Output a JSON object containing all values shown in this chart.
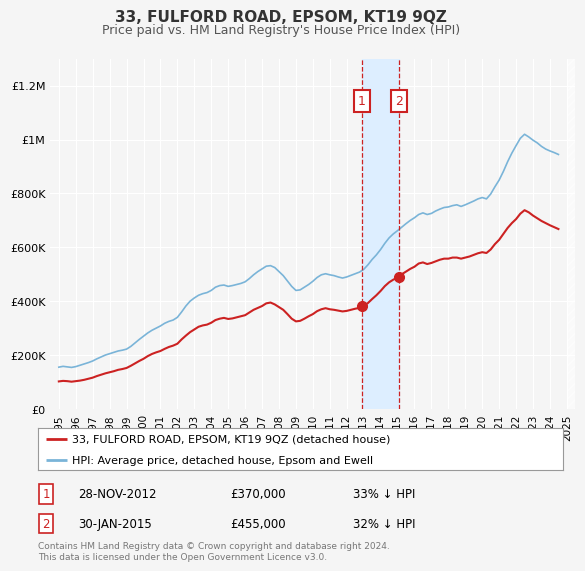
{
  "title": "33, FULFORD ROAD, EPSOM, KT19 9QZ",
  "subtitle": "Price paid vs. HM Land Registry's House Price Index (HPI)",
  "ylim": [
    0,
    1300000
  ],
  "yticks": [
    0,
    200000,
    400000,
    600000,
    800000,
    1000000,
    1200000
  ],
  "ytick_labels": [
    "£0",
    "£200K",
    "£400K",
    "£600K",
    "£800K",
    "£1M",
    "£1.2M"
  ],
  "background_color": "#f5f5f5",
  "plot_bg_color": "#f5f5f5",
  "grid_color": "#ffffff",
  "hpi_color": "#7ab4d8",
  "price_color": "#cc2222",
  "annotation_box_color": "#cc2222",
  "shade_color": "#ddeeff",
  "legend_label_price": "33, FULFORD ROAD, EPSOM, KT19 9QZ (detached house)",
  "legend_label_hpi": "HPI: Average price, detached house, Epsom and Ewell",
  "footer": "Contains HM Land Registry data © Crown copyright and database right 2024.\nThis data is licensed under the Open Government Licence v3.0.",
  "purchase1_date": "28-NOV-2012",
  "purchase1_price": 370000,
  "purchase1_label": "33",
  "purchase1_x": 2012.9,
  "purchase2_date": "30-JAN-2015",
  "purchase2_price": 455000,
  "purchase2_label": "32",
  "purchase2_x": 2015.08,
  "hpi_data": [
    [
      1995.0,
      155000
    ],
    [
      1995.25,
      158000
    ],
    [
      1995.5,
      156000
    ],
    [
      1995.75,
      154000
    ],
    [
      1996.0,
      157000
    ],
    [
      1996.25,
      162000
    ],
    [
      1996.5,
      167000
    ],
    [
      1996.75,
      172000
    ],
    [
      1997.0,
      178000
    ],
    [
      1997.25,
      186000
    ],
    [
      1997.5,
      193000
    ],
    [
      1997.75,
      200000
    ],
    [
      1998.0,
      205000
    ],
    [
      1998.25,
      210000
    ],
    [
      1998.5,
      215000
    ],
    [
      1998.75,
      218000
    ],
    [
      1999.0,
      222000
    ],
    [
      1999.25,
      232000
    ],
    [
      1999.5,
      245000
    ],
    [
      1999.75,
      258000
    ],
    [
      2000.0,
      270000
    ],
    [
      2000.25,
      282000
    ],
    [
      2000.5,
      292000
    ],
    [
      2000.75,
      300000
    ],
    [
      2001.0,
      308000
    ],
    [
      2001.25,
      318000
    ],
    [
      2001.5,
      325000
    ],
    [
      2001.75,
      330000
    ],
    [
      2002.0,
      340000
    ],
    [
      2002.25,
      360000
    ],
    [
      2002.5,
      382000
    ],
    [
      2002.75,
      400000
    ],
    [
      2003.0,
      412000
    ],
    [
      2003.25,
      422000
    ],
    [
      2003.5,
      428000
    ],
    [
      2003.75,
      432000
    ],
    [
      2004.0,
      440000
    ],
    [
      2004.25,
      452000
    ],
    [
      2004.5,
      458000
    ],
    [
      2004.75,
      460000
    ],
    [
      2005.0,
      455000
    ],
    [
      2005.25,
      458000
    ],
    [
      2005.5,
      462000
    ],
    [
      2005.75,
      466000
    ],
    [
      2006.0,
      472000
    ],
    [
      2006.25,
      484000
    ],
    [
      2006.5,
      498000
    ],
    [
      2006.75,
      510000
    ],
    [
      2007.0,
      520000
    ],
    [
      2007.25,
      530000
    ],
    [
      2007.5,
      532000
    ],
    [
      2007.75,
      525000
    ],
    [
      2008.0,
      510000
    ],
    [
      2008.25,
      495000
    ],
    [
      2008.5,
      475000
    ],
    [
      2008.75,
      455000
    ],
    [
      2009.0,
      440000
    ],
    [
      2009.25,
      442000
    ],
    [
      2009.5,
      452000
    ],
    [
      2009.75,
      462000
    ],
    [
      2010.0,
      474000
    ],
    [
      2010.25,
      488000
    ],
    [
      2010.5,
      498000
    ],
    [
      2010.75,
      502000
    ],
    [
      2011.0,
      498000
    ],
    [
      2011.25,
      495000
    ],
    [
      2011.5,
      490000
    ],
    [
      2011.75,
      486000
    ],
    [
      2012.0,
      490000
    ],
    [
      2012.25,
      496000
    ],
    [
      2012.5,
      502000
    ],
    [
      2012.75,
      508000
    ],
    [
      2013.0,
      518000
    ],
    [
      2013.25,
      535000
    ],
    [
      2013.5,
      555000
    ],
    [
      2013.75,
      572000
    ],
    [
      2014.0,
      592000
    ],
    [
      2014.25,
      615000
    ],
    [
      2014.5,
      635000
    ],
    [
      2014.75,
      650000
    ],
    [
      2015.0,
      662000
    ],
    [
      2015.25,
      675000
    ],
    [
      2015.5,
      688000
    ],
    [
      2015.75,
      700000
    ],
    [
      2016.0,
      710000
    ],
    [
      2016.25,
      722000
    ],
    [
      2016.5,
      728000
    ],
    [
      2016.75,
      722000
    ],
    [
      2017.0,
      726000
    ],
    [
      2017.25,
      735000
    ],
    [
      2017.5,
      742000
    ],
    [
      2017.75,
      748000
    ],
    [
      2018.0,
      750000
    ],
    [
      2018.25,
      755000
    ],
    [
      2018.5,
      758000
    ],
    [
      2018.75,
      752000
    ],
    [
      2019.0,
      758000
    ],
    [
      2019.25,
      765000
    ],
    [
      2019.5,
      772000
    ],
    [
      2019.75,
      780000
    ],
    [
      2020.0,
      785000
    ],
    [
      2020.25,
      780000
    ],
    [
      2020.5,
      798000
    ],
    [
      2020.75,
      825000
    ],
    [
      2021.0,
      850000
    ],
    [
      2021.25,
      882000
    ],
    [
      2021.5,
      918000
    ],
    [
      2021.75,
      950000
    ],
    [
      2022.0,
      978000
    ],
    [
      2022.25,
      1005000
    ],
    [
      2022.5,
      1020000
    ],
    [
      2022.75,
      1010000
    ],
    [
      2023.0,
      998000
    ],
    [
      2023.25,
      988000
    ],
    [
      2023.5,
      975000
    ],
    [
      2023.75,
      965000
    ],
    [
      2024.0,
      958000
    ],
    [
      2024.25,
      952000
    ],
    [
      2024.5,
      945000
    ]
  ],
  "price_data": [
    [
      1995.0,
      102000
    ],
    [
      1995.25,
      104000
    ],
    [
      1995.5,
      103000
    ],
    [
      1995.75,
      101000
    ],
    [
      1996.0,
      103000
    ],
    [
      1996.25,
      105000
    ],
    [
      1996.5,
      108000
    ],
    [
      1996.75,
      112000
    ],
    [
      1997.0,
      116000
    ],
    [
      1997.25,
      122000
    ],
    [
      1997.5,
      127000
    ],
    [
      1997.75,
      132000
    ],
    [
      1998.0,
      136000
    ],
    [
      1998.25,
      140000
    ],
    [
      1998.5,
      145000
    ],
    [
      1998.75,
      148000
    ],
    [
      1999.0,
      152000
    ],
    [
      1999.25,
      160000
    ],
    [
      1999.5,
      169000
    ],
    [
      1999.75,
      178000
    ],
    [
      2000.0,
      186000
    ],
    [
      2000.25,
      196000
    ],
    [
      2000.5,
      204000
    ],
    [
      2000.75,
      210000
    ],
    [
      2001.0,
      215000
    ],
    [
      2001.25,
      223000
    ],
    [
      2001.5,
      230000
    ],
    [
      2001.75,
      235000
    ],
    [
      2002.0,
      242000
    ],
    [
      2002.25,
      258000
    ],
    [
      2002.5,
      272000
    ],
    [
      2002.75,
      285000
    ],
    [
      2003.0,
      295000
    ],
    [
      2003.25,
      305000
    ],
    [
      2003.5,
      310000
    ],
    [
      2003.75,
      313000
    ],
    [
      2004.0,
      320000
    ],
    [
      2004.25,
      330000
    ],
    [
      2004.5,
      335000
    ],
    [
      2004.75,
      338000
    ],
    [
      2005.0,
      334000
    ],
    [
      2005.25,
      336000
    ],
    [
      2005.5,
      340000
    ],
    [
      2005.75,
      344000
    ],
    [
      2006.0,
      348000
    ],
    [
      2006.25,
      358000
    ],
    [
      2006.5,
      368000
    ],
    [
      2006.75,
      375000
    ],
    [
      2007.0,
      382000
    ],
    [
      2007.25,
      392000
    ],
    [
      2007.5,
      395000
    ],
    [
      2007.75,
      388000
    ],
    [
      2008.0,
      378000
    ],
    [
      2008.25,
      368000
    ],
    [
      2008.5,
      352000
    ],
    [
      2008.75,
      335000
    ],
    [
      2009.0,
      325000
    ],
    [
      2009.25,
      327000
    ],
    [
      2009.5,
      335000
    ],
    [
      2009.75,
      344000
    ],
    [
      2010.0,
      352000
    ],
    [
      2010.25,
      363000
    ],
    [
      2010.5,
      370000
    ],
    [
      2010.75,
      374000
    ],
    [
      2011.0,
      370000
    ],
    [
      2011.25,
      368000
    ],
    [
      2011.5,
      365000
    ],
    [
      2011.75,
      362000
    ],
    [
      2012.0,
      364000
    ],
    [
      2012.25,
      368000
    ],
    [
      2012.5,
      372000
    ],
    [
      2012.75,
      375000
    ],
    [
      2013.0,
      382000
    ],
    [
      2013.25,
      393000
    ],
    [
      2013.5,
      408000
    ],
    [
      2013.75,
      422000
    ],
    [
      2014.0,
      438000
    ],
    [
      2014.25,
      456000
    ],
    [
      2014.5,
      470000
    ],
    [
      2014.75,
      480000
    ],
    [
      2015.0,
      488000
    ],
    [
      2015.25,
      500000
    ],
    [
      2015.5,
      510000
    ],
    [
      2015.75,
      520000
    ],
    [
      2016.0,
      528000
    ],
    [
      2016.25,
      540000
    ],
    [
      2016.5,
      544000
    ],
    [
      2016.75,
      538000
    ],
    [
      2017.0,
      542000
    ],
    [
      2017.25,
      548000
    ],
    [
      2017.5,
      554000
    ],
    [
      2017.75,
      558000
    ],
    [
      2018.0,
      558000
    ],
    [
      2018.25,
      562000
    ],
    [
      2018.5,
      562000
    ],
    [
      2018.75,
      558000
    ],
    [
      2019.0,
      562000
    ],
    [
      2019.25,
      566000
    ],
    [
      2019.5,
      572000
    ],
    [
      2019.75,
      578000
    ],
    [
      2020.0,
      582000
    ],
    [
      2020.25,
      579000
    ],
    [
      2020.5,
      592000
    ],
    [
      2020.75,
      612000
    ],
    [
      2021.0,
      628000
    ],
    [
      2021.25,
      650000
    ],
    [
      2021.5,
      672000
    ],
    [
      2021.75,
      690000
    ],
    [
      2022.0,
      705000
    ],
    [
      2022.25,
      725000
    ],
    [
      2022.5,
      738000
    ],
    [
      2022.75,
      730000
    ],
    [
      2023.0,
      718000
    ],
    [
      2023.25,
      708000
    ],
    [
      2023.5,
      698000
    ],
    [
      2023.75,
      690000
    ],
    [
      2024.0,
      682000
    ],
    [
      2024.25,
      675000
    ],
    [
      2024.5,
      668000
    ]
  ],
  "xmin": 1994.5,
  "xmax": 2025.5,
  "xticks": [
    1995,
    1996,
    1997,
    1998,
    1999,
    2000,
    2001,
    2002,
    2003,
    2004,
    2005,
    2006,
    2007,
    2008,
    2009,
    2010,
    2011,
    2012,
    2013,
    2014,
    2015,
    2016,
    2017,
    2018,
    2019,
    2020,
    2021,
    2022,
    2023,
    2024,
    2025
  ]
}
